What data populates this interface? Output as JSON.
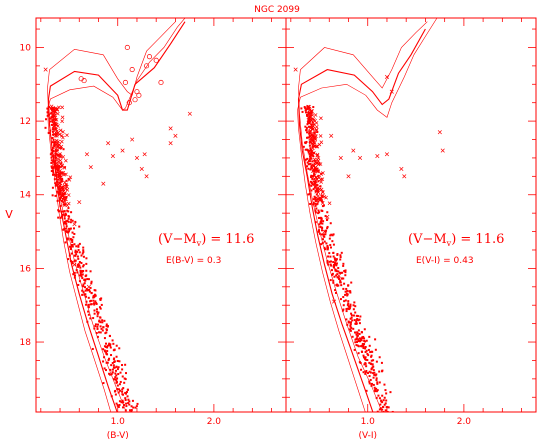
{
  "chart_data": {
    "type": "scatter",
    "title": "NGC 2099",
    "ylabel": "V",
    "panels": [
      {
        "id": "bv",
        "xlabel": "(B-V)",
        "xlim": [
          0.15,
          2.75
        ],
        "ylim": [
          19.9,
          9.2
        ],
        "xticks": [
          1.0,
          2.0
        ],
        "xtick_labels": [
          "1.0",
          "2.0"
        ],
        "yticks": [
          10,
          12,
          14,
          16,
          18
        ],
        "ytick_labels": [
          "10",
          "12",
          "14",
          "16",
          "18"
        ],
        "annotation_main": "(V−M",
        "annotation_sub": "v",
        "annotation_tail": ") = 11.6",
        "annotation_reddening": "E(B-V) = 0.3",
        "giants_open_circles": [
          [
            0.62,
            10.85
          ],
          [
            0.65,
            10.9
          ],
          [
            1.08,
            10.95
          ],
          [
            1.2,
            11.2
          ],
          [
            1.22,
            11.3
          ],
          [
            1.18,
            11.42
          ],
          [
            1.12,
            11.5
          ],
          [
            1.3,
            10.5
          ],
          [
            1.33,
            10.25
          ],
          [
            1.4,
            10.35
          ],
          [
            1.45,
            10.95
          ],
          [
            1.1,
            10.0
          ],
          [
            1.15,
            10.6
          ]
        ],
        "crosses": [
          [
            0.68,
            12.9
          ],
          [
            0.9,
            12.6
          ],
          [
            1.05,
            12.8
          ],
          [
            1.15,
            12.5
          ],
          [
            1.2,
            13.0
          ],
          [
            1.28,
            12.9
          ],
          [
            1.25,
            13.3
          ],
          [
            1.3,
            13.5
          ],
          [
            1.55,
            12.2
          ],
          [
            1.6,
            12.4
          ],
          [
            1.75,
            11.8
          ],
          [
            1.55,
            12.6
          ],
          [
            0.85,
            13.7
          ],
          [
            0.55,
            15.9
          ],
          [
            0.7,
            16.5
          ],
          [
            0.55,
            14.8
          ],
          [
            0.6,
            14.2
          ],
          [
            0.25,
            10.6
          ],
          [
            0.72,
            13.25
          ],
          [
            0.95,
            12.95
          ]
        ],
        "isochrones": [
          [
            [
              0.95,
              20.1
            ],
            [
              0.86,
              19.3
            ],
            [
              0.76,
              18.5
            ],
            [
              0.66,
              17.7
            ],
            [
              0.58,
              16.9
            ],
            [
              0.5,
              16.1
            ],
            [
              0.44,
              15.3
            ],
            [
              0.39,
              14.5
            ],
            [
              0.35,
              13.7
            ],
            [
              0.31,
              12.9
            ],
            [
              0.28,
              12.2
            ],
            [
              0.27,
              11.7
            ],
            [
              0.3,
              11.4
            ],
            [
              0.5,
              11.15
            ],
            [
              0.75,
              11.05
            ],
            [
              0.95,
              11.35
            ],
            [
              1.05,
              11.7
            ],
            [
              1.08,
              11.65
            ],
            [
              1.2,
              10.9
            ],
            [
              1.33,
              10.4
            ],
            [
              1.48,
              10.0
            ],
            [
              1.62,
              9.45
            ],
            [
              1.7,
              9.2
            ]
          ],
          [
            [
              1.02,
              20.1
            ],
            [
              0.9,
              19.2
            ],
            [
              0.79,
              18.3
            ],
            [
              0.69,
              17.5
            ],
            [
              0.6,
              16.7
            ],
            [
              0.52,
              15.9
            ],
            [
              0.46,
              15.1
            ],
            [
              0.4,
              14.3
            ],
            [
              0.36,
              13.5
            ],
            [
              0.32,
              12.8
            ],
            [
              0.29,
              12.1
            ],
            [
              0.28,
              11.4
            ],
            [
              0.3,
              11.05
            ],
            [
              0.55,
              10.65
            ],
            [
              0.8,
              10.75
            ],
            [
              1.0,
              11.3
            ],
            [
              1.05,
              11.7
            ],
            [
              1.1,
              11.7
            ],
            [
              1.18,
              11.0
            ],
            [
              1.38,
              10.55
            ],
            [
              1.55,
              9.9
            ],
            [
              1.7,
              9.3
            ]
          ],
          [
            [
              1.12,
              20.1
            ],
            [
              0.98,
              19.2
            ],
            [
              0.86,
              18.4
            ],
            [
              0.74,
              17.5
            ],
            [
              0.64,
              16.6
            ],
            [
              0.55,
              15.8
            ],
            [
              0.48,
              15.0
            ],
            [
              0.41,
              14.2
            ],
            [
              0.36,
              13.4
            ],
            [
              0.31,
              12.6
            ],
            [
              0.28,
              11.8
            ],
            [
              0.27,
              11.1
            ],
            [
              0.29,
              10.6
            ],
            [
              0.55,
              10.05
            ],
            [
              0.85,
              10.2
            ],
            [
              1.0,
              10.85
            ],
            [
              1.1,
              11.2
            ],
            [
              1.15,
              11.3
            ],
            [
              1.2,
              10.8
            ],
            [
              1.3,
              10.1
            ],
            [
              1.45,
              9.7
            ],
            [
              1.6,
              9.3
            ]
          ]
        ]
      },
      {
        "id": "vi",
        "xlabel": "(V-I)",
        "xlim": [
          0.15,
          2.75
        ],
        "ylim": [
          19.9,
          9.2
        ],
        "xticks": [
          1.0,
          2.0
        ],
        "xtick_labels": [
          "1.0",
          "2.0"
        ],
        "yticks": [
          10,
          12,
          14,
          16,
          18
        ],
        "ytick_labels": [],
        "annotation_main": "(V−M",
        "annotation_sub": "v",
        "annotation_tail": ") = 11.6",
        "annotation_reddening": "E(V-I) = 0.43",
        "giants_open_circles": [],
        "crosses": [
          [
            0.72,
            13.0
          ],
          [
            0.85,
            12.8
          ],
          [
            0.92,
            13.0
          ],
          [
            1.2,
            12.9
          ],
          [
            1.35,
            13.3
          ],
          [
            1.38,
            13.5
          ],
          [
            1.75,
            12.3
          ],
          [
            1.78,
            12.8
          ],
          [
            0.55,
            15.0
          ],
          [
            0.7,
            16.2
          ],
          [
            0.65,
            16.9
          ],
          [
            0.45,
            12.0
          ],
          [
            0.62,
            12.4
          ],
          [
            0.25,
            10.6
          ],
          [
            1.2,
            10.8
          ],
          [
            1.25,
            11.2
          ],
          [
            0.8,
            13.5
          ],
          [
            0.58,
            14.6
          ],
          [
            1.1,
            12.95
          ]
        ],
        "isochrones": [
          [
            [
              1.0,
              20.1
            ],
            [
              0.9,
              19.3
            ],
            [
              0.8,
              18.5
            ],
            [
              0.7,
              17.7
            ],
            [
              0.61,
              16.9
            ],
            [
              0.53,
              16.1
            ],
            [
              0.46,
              15.3
            ],
            [
              0.4,
              14.5
            ],
            [
              0.35,
              13.7
            ],
            [
              0.31,
              12.9
            ],
            [
              0.28,
              12.2
            ],
            [
              0.27,
              11.7
            ],
            [
              0.3,
              11.35
            ],
            [
              0.52,
              11.1
            ],
            [
              0.78,
              11.0
            ],
            [
              0.98,
              11.3
            ],
            [
              1.1,
              11.7
            ],
            [
              1.2,
              11.9
            ],
            [
              1.25,
              11.5
            ],
            [
              1.38,
              10.8
            ],
            [
              1.48,
              10.2
            ],
            [
              1.6,
              9.7
            ],
            [
              1.72,
              9.2
            ]
          ],
          [
            [
              1.08,
              20.1
            ],
            [
              0.96,
              19.2
            ],
            [
              0.84,
              18.3
            ],
            [
              0.73,
              17.5
            ],
            [
              0.63,
              16.7
            ],
            [
              0.55,
              15.9
            ],
            [
              0.48,
              15.1
            ],
            [
              0.42,
              14.3
            ],
            [
              0.37,
              13.5
            ],
            [
              0.32,
              12.8
            ],
            [
              0.29,
              12.1
            ],
            [
              0.28,
              11.4
            ],
            [
              0.31,
              11.0
            ],
            [
              0.58,
              10.6
            ],
            [
              0.86,
              10.75
            ],
            [
              1.05,
              11.2
            ],
            [
              1.15,
              11.55
            ],
            [
              1.22,
              11.4
            ],
            [
              1.32,
              10.7
            ],
            [
              1.45,
              10.2
            ],
            [
              1.6,
              9.5
            ]
          ],
          [
            [
              1.18,
              20.1
            ],
            [
              1.04,
              19.2
            ],
            [
              0.9,
              18.4
            ],
            [
              0.78,
              17.5
            ],
            [
              0.67,
              16.6
            ],
            [
              0.58,
              15.8
            ],
            [
              0.5,
              15.0
            ],
            [
              0.43,
              14.2
            ],
            [
              0.37,
              13.4
            ],
            [
              0.32,
              12.6
            ],
            [
              0.29,
              11.8
            ],
            [
              0.28,
              11.1
            ],
            [
              0.3,
              10.6
            ],
            [
              0.55,
              10.0
            ],
            [
              0.85,
              10.2
            ],
            [
              1.05,
              10.8
            ],
            [
              1.15,
              11.1
            ],
            [
              1.25,
              10.6
            ],
            [
              1.35,
              10.0
            ],
            [
              1.5,
              9.6
            ],
            [
              1.62,
              9.3
            ]
          ]
        ]
      }
    ],
    "main_sequence_ridge": [
      [
        0.3,
        11.6
      ],
      [
        0.32,
        12.2
      ],
      [
        0.34,
        12.8
      ],
      [
        0.36,
        13.4
      ],
      [
        0.4,
        14.0
      ],
      [
        0.45,
        14.6
      ],
      [
        0.52,
        15.2
      ],
      [
        0.59,
        15.8
      ],
      [
        0.66,
        16.4
      ],
      [
        0.74,
        17.0
      ],
      [
        0.82,
        17.6
      ],
      [
        0.9,
        18.2
      ],
      [
        0.98,
        18.8
      ],
      [
        1.06,
        19.4
      ],
      [
        1.12,
        19.9
      ]
    ],
    "ridge_offset_vi": 0.06
  }
}
